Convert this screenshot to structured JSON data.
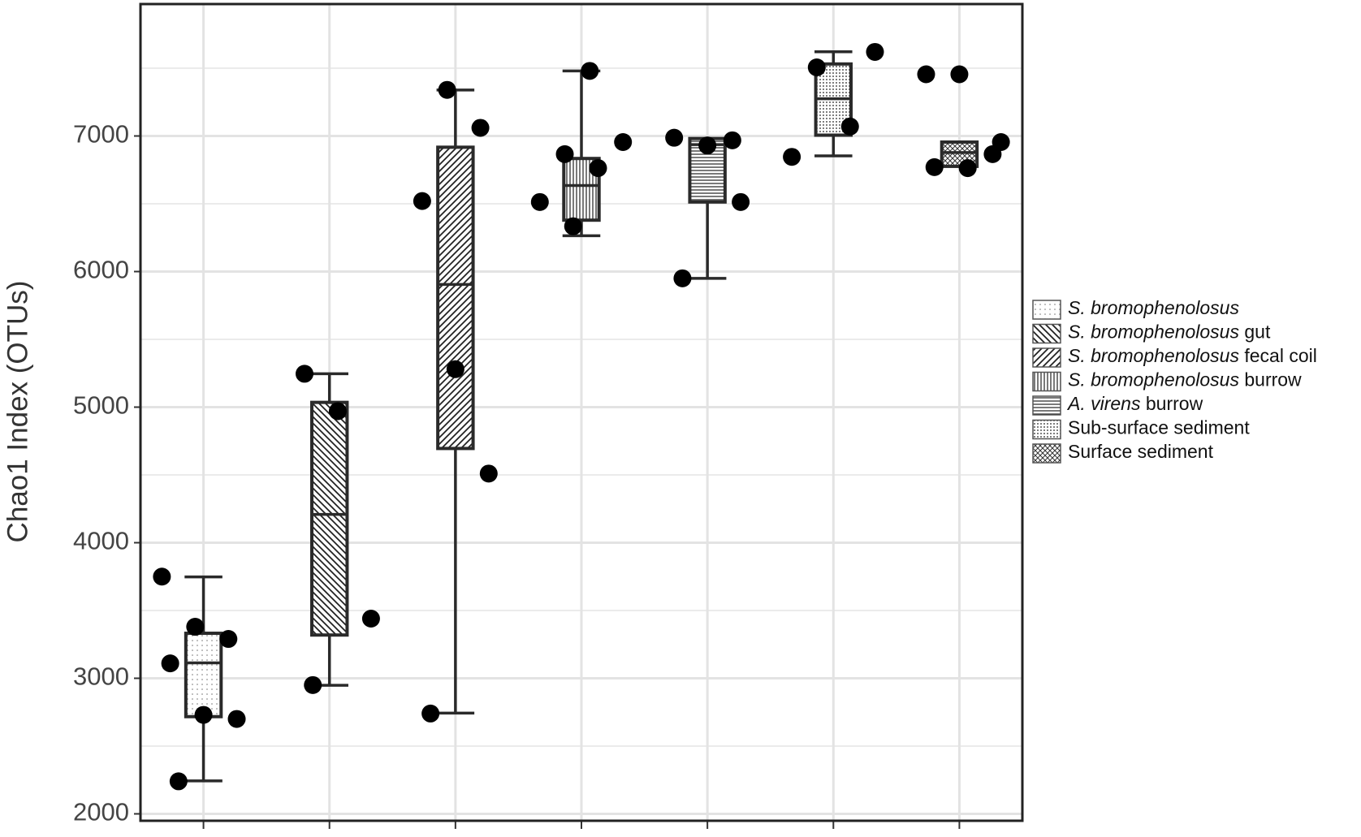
{
  "chart_data": {
    "type": "box",
    "y_label": "Chao1 Index (OTUs)",
    "categories": [
      null,
      null,
      null,
      null,
      null,
      null,
      null
    ],
    "ylim": [
      1949,
      7973
    ],
    "yticks": [
      2000,
      3000,
      4000,
      5000,
      6000,
      7000
    ],
    "minor_yticks": [
      2500,
      3500,
      4500,
      5500,
      6500,
      7500
    ],
    "grid": true,
    "legend": "right",
    "series": [
      {
        "name": "S. bromophenolosus",
        "pattern": "sparse-dots",
        "min": 2243,
        "q1": 2717,
        "median": 3114,
        "q3": 3332,
        "max": 3748,
        "points": [
          3750,
          3380,
          3290,
          3110,
          2730,
          2700,
          2240
        ]
      },
      {
        "name": "S. bromophenolosus gut",
        "pattern": "back-diagonal",
        "min": 2948,
        "q1": 3319,
        "median": 4209,
        "q3": 5035,
        "max": 5246,
        "points": [
          5246,
          4970,
          3440,
          2950
        ]
      },
      {
        "name": "S. bromophenolosus fecal coil",
        "pattern": "forward-diagonal",
        "min": 2743,
        "q1": 4695,
        "median": 5905,
        "q3": 6917,
        "max": 7339,
        "points": [
          7340,
          7060,
          6520,
          5280,
          4510,
          2740
        ]
      },
      {
        "name": "S. bromophenolosus burrow",
        "pattern": "vertical",
        "min": 6264,
        "q1": 6379,
        "median": 6635,
        "q3": 6834,
        "max": 7480,
        "points": [
          7480,
          6955,
          6866,
          6763,
          6513,
          6334
        ]
      },
      {
        "name": "A. virens burrow",
        "pattern": "horizontal",
        "min": 5950,
        "q1": 6513,
        "median": 6936,
        "q3": 6981,
        "max": 6981,
        "points": [
          6968,
          6987,
          6930,
          6513,
          5950
        ]
      },
      {
        "name": "Sub-surface sediment",
        "pattern": "dense-dots",
        "min": 6853,
        "q1": 7006,
        "median": 7275,
        "q3": 7531,
        "max": 7621,
        "points": [
          7620,
          7506,
          7070,
          6846
        ]
      },
      {
        "name": "Surface sediment",
        "pattern": "crosshatch",
        "min": 6776,
        "q1": 6776,
        "median": 6878,
        "q3": 6955,
        "max": 6955,
        "points": [
          7455,
          7455,
          6866,
          6770,
          6763,
          6955
        ]
      }
    ]
  }
}
